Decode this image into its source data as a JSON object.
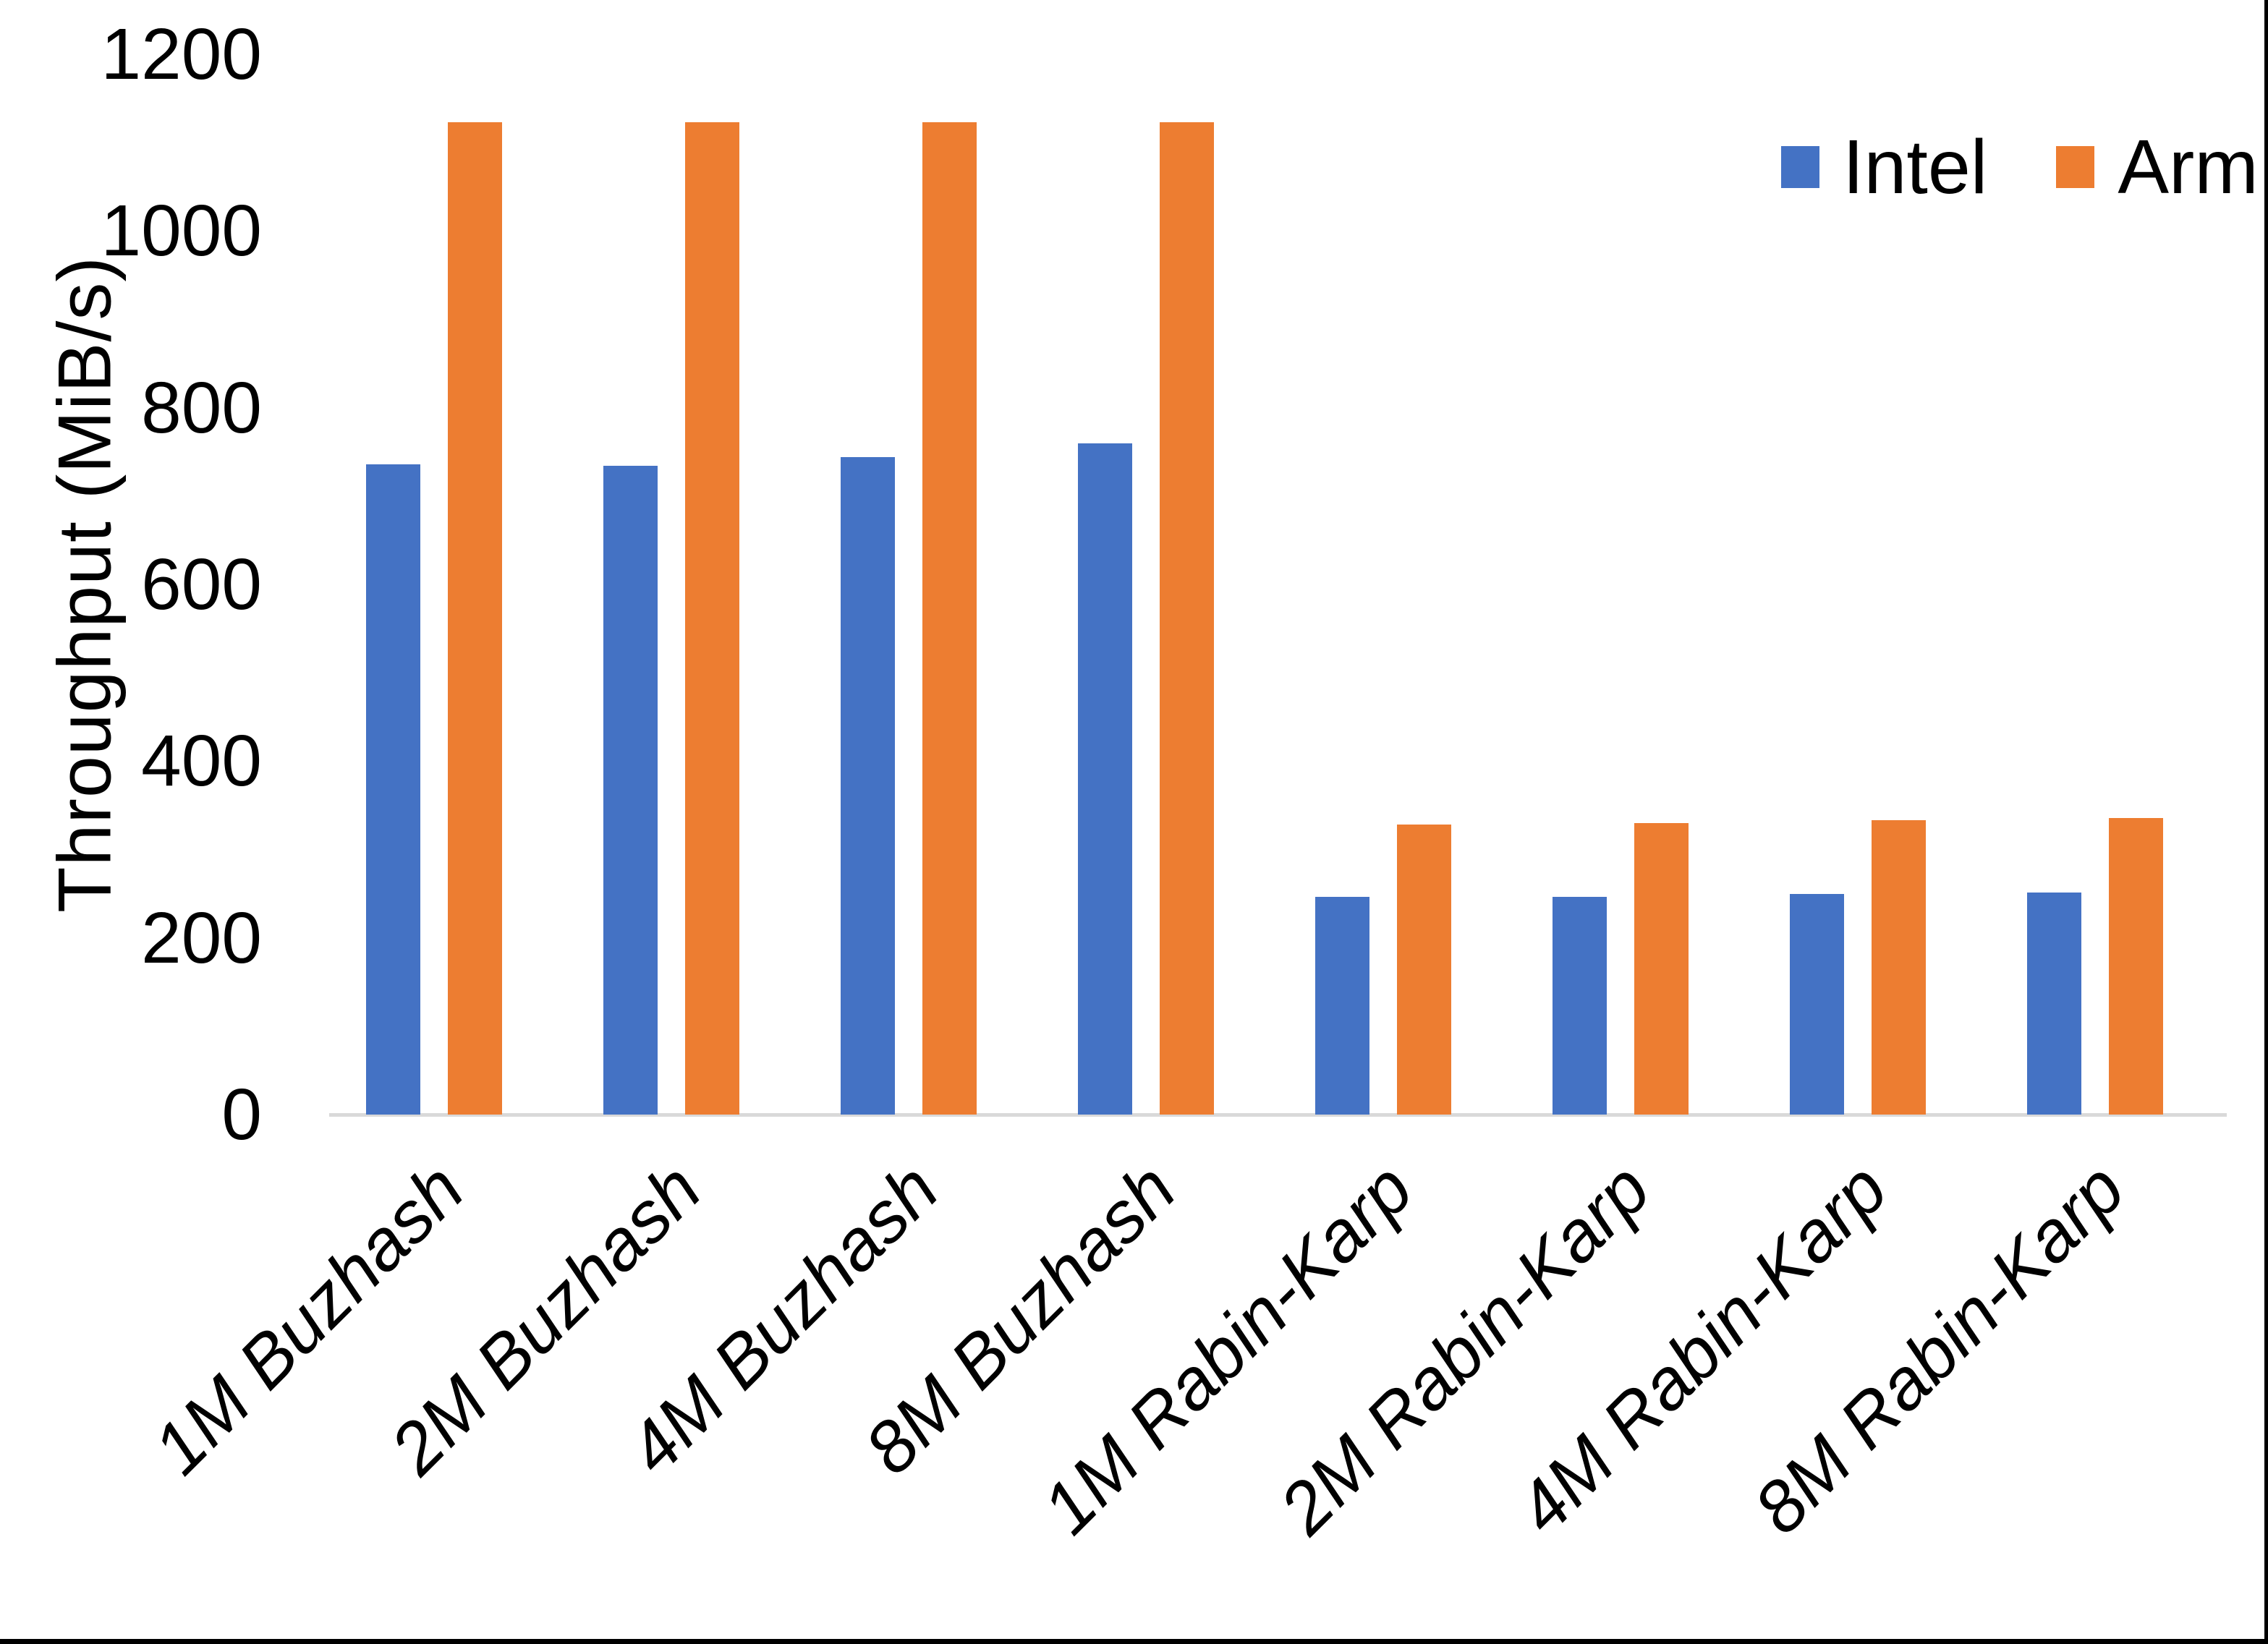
{
  "chart_data": {
    "type": "bar",
    "title": "",
    "xlabel": "",
    "ylabel": "Throughput (MiB/s)",
    "categories": [
      "1M Buzhash",
      "2M Buzhash",
      "4M Buzhash",
      "8M Buzhash",
      "1M Rabin-Karp",
      "2M Rabin-Karp",
      "4M Rabin-Karp",
      "8M Rabin-Karp"
    ],
    "series": [
      {
        "name": "Intel",
        "color": "#4472C4",
        "values": [
          736,
          734,
          744,
          760,
          246,
          246,
          250,
          251
        ]
      },
      {
        "name": "Arm",
        "color": "#ED7D31",
        "values": [
          1123,
          1123,
          1123,
          1123,
          328,
          330,
          333,
          336
        ]
      }
    ],
    "ylim": [
      0,
      1200
    ],
    "yticks": [
      0,
      200,
      400,
      600,
      800,
      1000,
      1200
    ],
    "grid": false,
    "legend_position": "top-right",
    "axis_line_color": "#D9D9D9",
    "text_color": "#000000"
  },
  "legend": {
    "items": [
      {
        "label": "Intel",
        "color": "#4472C4"
      },
      {
        "label": "Arm",
        "color": "#ED7D31"
      }
    ]
  },
  "frame": {
    "border_color": "#000000"
  }
}
